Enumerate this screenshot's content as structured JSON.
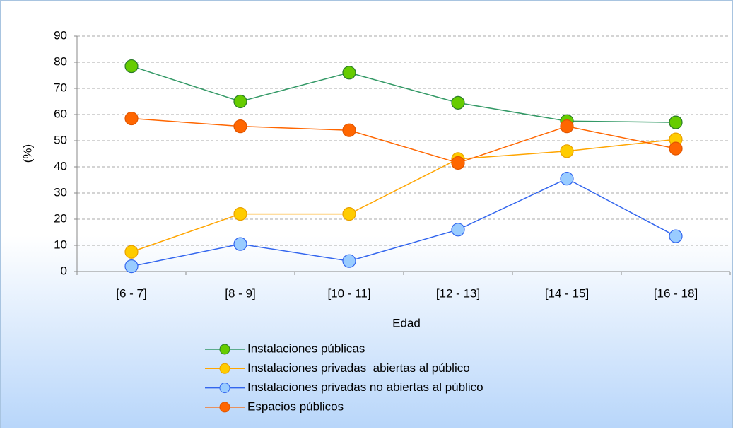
{
  "chart_data": {
    "type": "line",
    "xlabel": "Edad",
    "ylabel": "(%)",
    "categories": [
      "[6 - 7]",
      "[8 - 9]",
      "[10 - 11]",
      "[12 - 13]",
      "[14 - 15]",
      "[16 - 18]"
    ],
    "series": [
      {
        "name": "Instalaciones públicas",
        "color": "#339966",
        "marker_color": "#66cc00",
        "marker_edge": "#2a7a2a",
        "values": [
          78.5,
          65,
          76,
          64.5,
          57.5,
          57
        ]
      },
      {
        "name": "Instalaciones privadas  abiertas al público",
        "color": "#ffa500",
        "marker_color": "#ffcc00",
        "marker_edge": "#e8a000",
        "values": [
          7.5,
          22,
          22,
          43,
          46,
          50.5
        ]
      },
      {
        "name": "Instalaciones privadas no abiertas al público",
        "color": "#3366ee",
        "marker_color": "#99ccff",
        "marker_edge": "#3366ee",
        "values": [
          2,
          10.5,
          4,
          16,
          35.5,
          13.5
        ]
      },
      {
        "name": "Espacios públicos",
        "color": "#ff6600",
        "marker_color": "#ff6600",
        "marker_edge": "#e05500",
        "values": [
          58.5,
          55.5,
          54,
          41.5,
          55.5,
          47
        ]
      }
    ],
    "ylim": [
      0,
      90
    ],
    "yticks": [
      0,
      10,
      20,
      30,
      40,
      50,
      60,
      70,
      80,
      90
    ],
    "grid": true
  }
}
